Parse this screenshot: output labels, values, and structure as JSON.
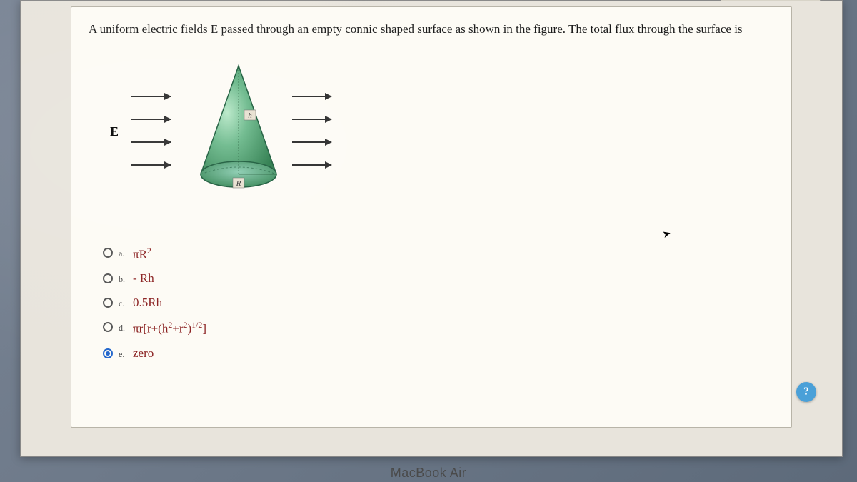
{
  "question": {
    "text": "A uniform electric fields E passed through an empty connic shaped surface as shown in the figure. The total flux through the surface is"
  },
  "figure": {
    "field_label": "E",
    "cone_height_label": "h",
    "cone_radius_label": "R",
    "cone_fill_top": "#2a7a4a",
    "cone_fill_bottom": "#6ab88a",
    "cone_highlight": "#b8e8c8",
    "cone_stroke": "#1a5a3a",
    "arrow_color": "#2a2a2a"
  },
  "options": {
    "a": {
      "letter": "a.",
      "html": "πR<sup>2</sup>",
      "selected": false
    },
    "b": {
      "letter": "b.",
      "html": "- Rh",
      "selected": false
    },
    "c": {
      "letter": "c.",
      "html": "0.5Rh",
      "selected": false
    },
    "d": {
      "letter": "d.",
      "html": "πr[r+(h<sup>2</sup>+r<sup>2</sup>)<sup>1/2</sup>]",
      "selected": false
    },
    "e": {
      "letter": "e.",
      "html": "zero",
      "selected": true
    }
  },
  "help_button": "?",
  "device_label": "MacBook Air",
  "colors": {
    "card_bg": "#fdfbf5",
    "option_text": "#8a2020",
    "radio_selected": "#2266cc",
    "help_bg": "#4aa0d8"
  }
}
